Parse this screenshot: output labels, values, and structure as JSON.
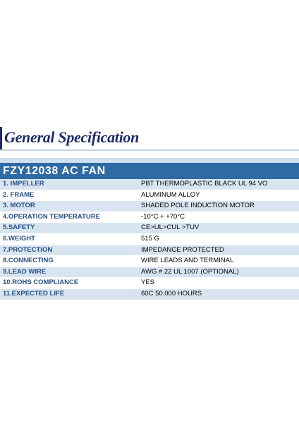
{
  "section_title": "General Specification",
  "product_header": "FZY12038  AC FAN",
  "specs": [
    {
      "label": "1. IMPELLER",
      "value": "PBT THERMOPLASTIC BLACK UL 94 VO"
    },
    {
      "label": "2. FRAME",
      "value": "ALUMINUM ALLOY"
    },
    {
      "label": "3. MOTOR",
      "value": "SHADED POLE INDUCTION MOTOR"
    },
    {
      "label": "4.OPERATION TEMPERATURE",
      "value": "-10°C + +70°C"
    },
    {
      "label": "5.SAFETY",
      "value": "CE>UL>CUL >TUV"
    },
    {
      "label": "6.WEIGHT",
      "value": "515 G"
    },
    {
      "label": "7.PROTECTION",
      "value": "IMPEDANCE  PROTECTED"
    },
    {
      "label": "8.CONNECTING",
      "value": "WIRE LEADS AND TERMINAL"
    },
    {
      "label": "9.LEAD WIRE",
      "value": "AWG # 22 UL 1007 (OPTIONAL)"
    },
    {
      "label": "10.ROHS COMPLIANCE",
      "value": "YES"
    },
    {
      "label": "11.EXPECTED LIFE",
      "value": "60C 50.000 HOURS"
    }
  ]
}
